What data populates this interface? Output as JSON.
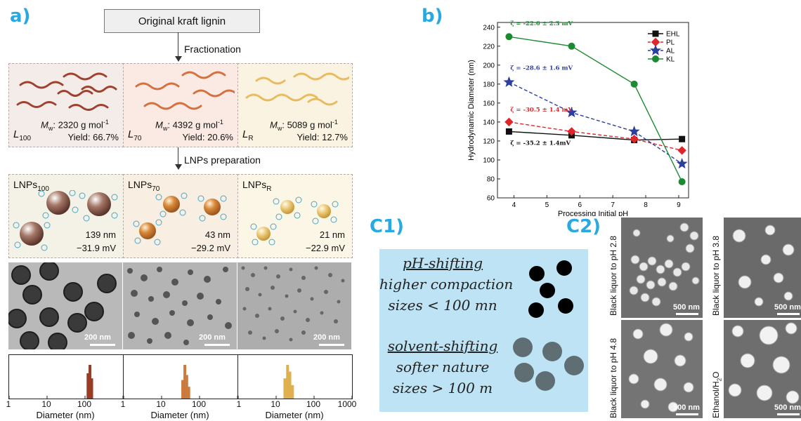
{
  "panels": {
    "a": "a)",
    "b": "b)",
    "c1": "C1)",
    "c2": "C2)"
  },
  "panel_a": {
    "top_box": "Original kraft lignin",
    "step1": "Fractionation",
    "step2": "LNPs preparation",
    "fractions": [
      {
        "name": "L",
        "sub": "100",
        "mw_label": "M",
        "mw_sub": "w",
        "mw_value": ": 2320 g mol",
        "mw_exp": "-1",
        "yield": "Yield: 66.7%",
        "color": "#a0412f"
      },
      {
        "name": "L",
        "sub": "70",
        "mw_label": "M",
        "mw_sub": "w",
        "mw_value": ": 4392 g mol",
        "mw_exp": "-1",
        "yield": "Yield: 20.6%",
        "color": "#d4713f"
      },
      {
        "name": "L",
        "sub": "R",
        "mw_label": "M",
        "mw_sub": "w",
        "mw_value": ": 5089 g mol",
        "mw_exp": "-1",
        "yield": "Yield: 12.7%",
        "color": "#e7bb5e"
      }
    ],
    "lnps": [
      {
        "name": "LNPs",
        "sub": "100",
        "size": "139 nm",
        "zeta": "−31.9 mV",
        "color": "#8a5a4a"
      },
      {
        "name": "LNPs",
        "sub": "70",
        "size": "43 nm",
        "zeta": "−29.2 mV",
        "color": "#d08a3c"
      },
      {
        "name": "LNPs",
        "sub": "R",
        "size": "21 nm",
        "zeta": "−22.9 mV",
        "color": "#e8c270"
      }
    ],
    "tem_scale": [
      "200 nm",
      "200 nm",
      "200 nm"
    ],
    "hist_ticks": [
      [
        "1",
        "10",
        "100"
      ],
      [
        "1",
        "10",
        "100"
      ],
      [
        "1",
        "10",
        "100",
        "1000"
      ]
    ],
    "hist_axis": [
      "Diameter (nm)",
      "Diameter (nm)",
      "Diameter (nm)"
    ],
    "hist_bars": [
      [
        {
          "d": 120,
          "h": 0.75
        },
        {
          "d": 135,
          "h": 1.0
        },
        {
          "d": 150,
          "h": 0.6
        }
      ],
      [
        {
          "d": 36,
          "h": 0.55
        },
        {
          "d": 41,
          "h": 1.0
        },
        {
          "d": 46,
          "h": 0.7
        },
        {
          "d": 52,
          "h": 0.35
        }
      ],
      [
        {
          "d": 17,
          "h": 0.6
        },
        {
          "d": 20,
          "h": 1.0
        },
        {
          "d": 23,
          "h": 0.8
        },
        {
          "d": 27,
          "h": 0.4
        }
      ]
    ],
    "hist_colors": [
      "#9a3c24",
      "#cc7a3e",
      "#e0b04f"
    ]
  },
  "chart_data": {
    "type": "line",
    "xlabel": "Processing Initial pH",
    "ylabel": "Hydrodynamic Diameter (nm)",
    "xlim": [
      3.5,
      9.3
    ],
    "ylim": [
      60,
      245
    ],
    "xticks": [
      4,
      5,
      6,
      7,
      8,
      9
    ],
    "yticks": [
      60,
      80,
      100,
      120,
      140,
      160,
      180,
      200,
      220,
      240
    ],
    "legend_position": "top-right",
    "series": [
      {
        "name": "EHL",
        "color": "#111111",
        "marker": "square",
        "dash": false,
        "x": [
          3.85,
          5.75,
          7.65,
          9.1
        ],
        "y": [
          130,
          126,
          121,
          122
        ]
      },
      {
        "name": "PL",
        "color": "#e0262b",
        "marker": "diamond",
        "dash": true,
        "x": [
          3.85,
          5.75,
          7.65,
          9.1
        ],
        "y": [
          140,
          130,
          122,
          110
        ]
      },
      {
        "name": "AL",
        "color": "#2b3f9e",
        "marker": "star",
        "dash": true,
        "x": [
          3.85,
          5.75,
          7.65,
          9.1
        ],
        "y": [
          182,
          150,
          130,
          96
        ]
      },
      {
        "name": "KL",
        "color": "#1d8a32",
        "marker": "circle",
        "dash": false,
        "x": [
          3.85,
          5.75,
          7.65,
          9.1
        ],
        "y": [
          230,
          220,
          180,
          77
        ]
      }
    ],
    "annotations": [
      {
        "text": "ζ = -22.6 ± 2.3 mV",
        "color": "#1d8a32",
        "x": 3.85,
        "y": 242
      },
      {
        "text": "ζ = -28.6 ± 1.6 mV",
        "color": "#2b3f9e",
        "x": 3.85,
        "y": 195
      },
      {
        "text": "ζ = -30.5 ± 1.4 mV",
        "color": "#e0262b",
        "x": 3.85,
        "y": 151
      },
      {
        "text": "ζ = -35.2 ± 1.4mV",
        "color": "#111111",
        "x": 3.85,
        "y": 116
      }
    ]
  },
  "panel_c1": {
    "line1": "pH-shifting",
    "line2": "higher compaction",
    "line3": "sizes < 100 mn",
    "line4": "solvent-shifting",
    "line5": "softer nature",
    "line6": "sizes > 100 m"
  },
  "panel_c2": {
    "labels": [
      "Black liquor to pH 2.8",
      "Black liquor to pH 3.8",
      "Black liquor to pH 4.8",
      "Ethanol/H"
    ],
    "label4_sub": "2",
    "label4_tail": "O",
    "scale": [
      "500 nm",
      "500 nm",
      "500 nm",
      "500 nm"
    ]
  }
}
